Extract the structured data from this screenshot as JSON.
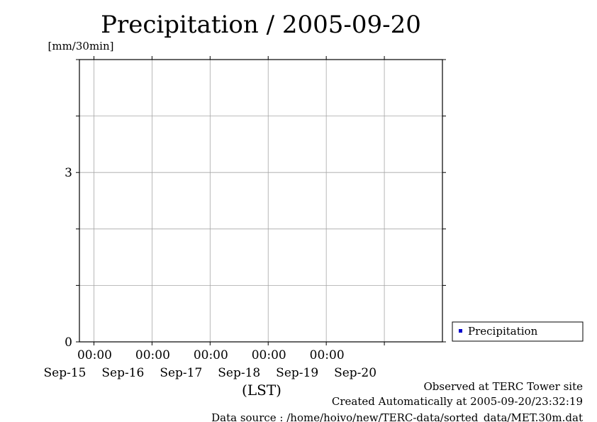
{
  "chart_data": {
    "type": "line",
    "title": "Precipitation / 2005-09-20",
    "ylabel": "[mm/30min]",
    "xlabel": "(LST)",
    "ylim": [
      0,
      5
    ],
    "yticks": [
      0,
      3
    ],
    "ygrid_step": 1,
    "x_start": "2005-09-14 18:00",
    "x_end": "2005-09-20 24:00",
    "xticks": [
      {
        "time": "2005-09-15 00:00",
        "time_label": "00:00",
        "date_label": "Sep-15"
      },
      {
        "time": "2005-09-16 00:00",
        "time_label": "00:00",
        "date_label": "Sep-16"
      },
      {
        "time": "2005-09-17 00:00",
        "time_label": "00:00",
        "date_label": "Sep-17"
      },
      {
        "time": "2005-09-18 00:00",
        "time_label": "00:00",
        "date_label": "Sep-18"
      },
      {
        "time": "2005-09-19 00:00",
        "time_label": "00:00",
        "date_label": "Sep-19"
      },
      {
        "time": "2005-09-20 00:00",
        "time_label": "",
        "date_label": "Sep-20"
      }
    ],
    "grid": true,
    "legend_position": "bottom-right, outside plot",
    "series": [
      {
        "name": "Precipitation",
        "color": "#0000cc",
        "values": []
      }
    ]
  },
  "footer": {
    "line1": "Observed at TERC Tower site",
    "line2": "Created Automatically at 2005-09-20/23:32:19",
    "line3": "Data source : /home/hoivo/new/TERC-data/sorted_data/MET.30m.dat"
  }
}
